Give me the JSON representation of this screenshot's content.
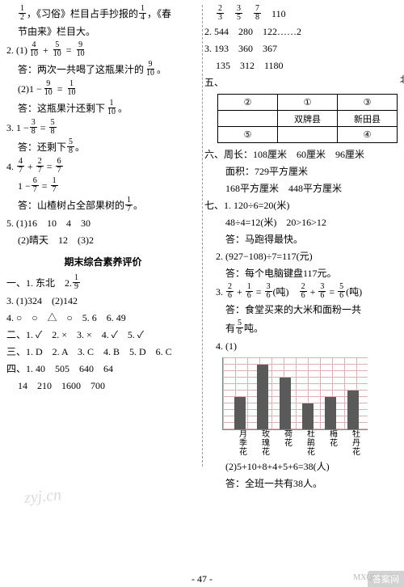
{
  "left": {
    "l1a": "，《习俗》栏目占手抄报的",
    "l1b": "，《春",
    "l2": "节由来》栏目大。",
    "q2_lhs1": "2. (1)",
    "ans2_1": "答：两次一共喝了这瓶果汁的",
    "ans2_1b": "。",
    "q2_2a": "(2)1 −",
    "ans2_2a": "答：这瓶果汁还剩下",
    "ans2_2b": "。",
    "q3a": "3. 1 −",
    "ans3a": "答：还剩下",
    "ans3b": "。",
    "q4_2a": "1 −",
    "ans4a": "答：山楂树占全部果树的",
    "ans4b": "。",
    "q5_1": "5. (1)16　10　4　30",
    "q5_2": "(2)晴天　12　(3)2",
    "heading": "期末综合素养评价",
    "s1_1": "一、1. 东北　2. ",
    "s1_3": "3. (1)324　(2)142",
    "s1_4": "4. ○　○　△　○　5. 6　6. 49",
    "s2": "二、1. ✓　2. ×　3. ×　4. ✓　5. ✓",
    "s3": "三、1. D　2. A　3. C　4. B　5. D　6. C",
    "s4_1": "四、1. 40　505　640　64",
    "s4_2": "14　210　1600　700",
    "f_1_2": {
      "n": "1",
      "d": "2"
    },
    "f_1_4": {
      "n": "1",
      "d": "4"
    },
    "f_4_10": {
      "n": "4",
      "d": "10"
    },
    "f_5_10": {
      "n": "5",
      "d": "10"
    },
    "f_9_10": {
      "n": "9",
      "d": "10"
    },
    "f_1_10": {
      "n": "1",
      "d": "10"
    },
    "f_3_8": {
      "n": "3",
      "d": "8"
    },
    "f_5_8": {
      "n": "5",
      "d": "8"
    },
    "f_4_7": {
      "n": "4",
      "d": "7"
    },
    "f_2_7": {
      "n": "2",
      "d": "7"
    },
    "f_6_7": {
      "n": "6",
      "d": "7"
    },
    "f_1_7": {
      "n": "1",
      "d": "7"
    },
    "f_1_9": {
      "n": "1",
      "d": "9"
    }
  },
  "right": {
    "r1_nums": "　110",
    "r2": "2. 544　280　122……2",
    "r3": "3. 193　360　367",
    "r3b": "135　312　1180",
    "s5_label": "五、",
    "north": "北",
    "table": {
      "r1": [
        "②",
        "①",
        "③"
      ],
      "r2": [
        "",
        "双牌县",
        "新田县"
      ],
      "r3": [
        "⑤",
        "",
        "④"
      ]
    },
    "s6_1": "六、周长：108厘米　60厘米　96厘米",
    "s6_2": "面积：729平方厘米",
    "s6_3": "168平方厘米　448平方厘米",
    "s7_1": "七、1. 120÷6=20(米)",
    "s7_1b": "48÷4=12(米)　20>16>12",
    "s7_1c": "答：马跑得最快。",
    "s7_2": "2. (927−108)÷7=117(元)",
    "s7_2b": "答：每个电脑键盘117元。",
    "s7_3_mid": "(吨)　",
    "s7_3_end": "(吨)",
    "s7_3b": "答：食堂买来的大米和面粉一共",
    "s7_3c_a": "有",
    "s7_3c_b": "吨。",
    "s7_4": "4. (1)",
    "f_2_3": {
      "n": "2",
      "d": "3"
    },
    "f_3_5": {
      "n": "3",
      "d": "5"
    },
    "f_7_8": {
      "n": "7",
      "d": "8"
    },
    "f_2_6": {
      "n": "2",
      "d": "6"
    },
    "f_1_6": {
      "n": "1",
      "d": "6"
    },
    "f_3_6": {
      "n": "3",
      "d": "6"
    },
    "f_5_6": {
      "n": "5",
      "d": "6"
    },
    "chart": {
      "values": [
        5,
        10,
        8,
        4,
        5,
        6
      ],
      "scale": 8,
      "bar_color": "#5a5a5a",
      "grid_color": "#d9b3b3",
      "xlabels": [
        [
          "月",
          "季",
          "花"
        ],
        [
          "玫",
          "瑰",
          "花"
        ],
        [
          "荷",
          "花",
          ""
        ],
        [
          "杜",
          "鹃",
          "花"
        ],
        [
          "梅",
          "花",
          ""
        ],
        [
          "牡",
          "丹",
          "花"
        ]
      ]
    },
    "s7_4b": "(2)5+10+8+4+5+6=38(人)",
    "s7_4c": "答：全班一共有38人。"
  },
  "footer": "- 47 -",
  "wm1": "zyj.cn",
  "wm2": "MXQE.COM",
  "badge": "答案网"
}
